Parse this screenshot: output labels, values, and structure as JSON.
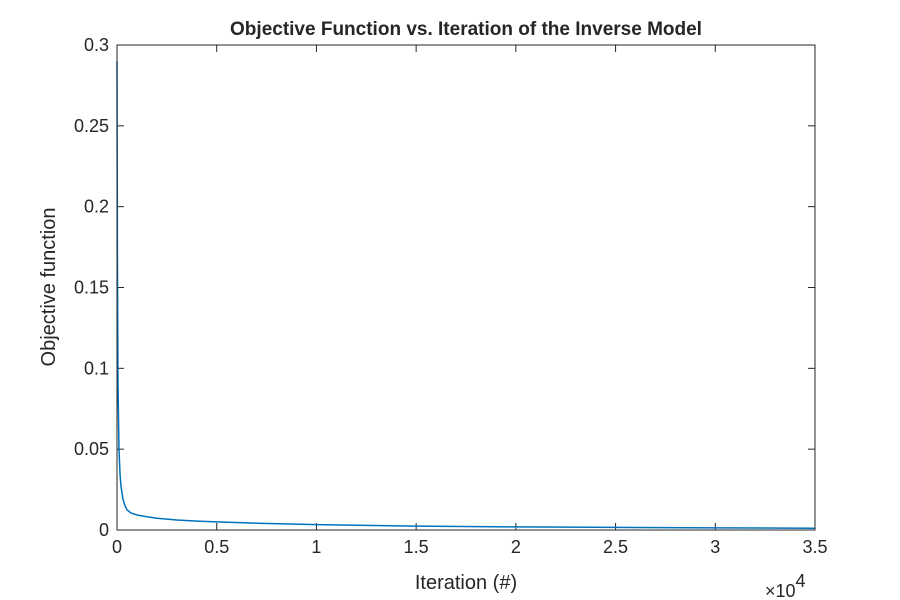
{
  "chart_data": {
    "type": "line",
    "title": "Objective Function vs. Iteration of the Inverse Model",
    "xlabel": "Iteration (#)",
    "ylabel": "Objective function",
    "xlim": [
      0,
      35000
    ],
    "ylim": [
      0,
      0.3
    ],
    "x_exponent_label": {
      "base": "×10",
      "power": "4"
    },
    "x_tick_values": [
      0,
      5000,
      10000,
      15000,
      20000,
      25000,
      30000,
      35000
    ],
    "x_tick_labels": [
      "0",
      "0.5",
      "1",
      "1.5",
      "2",
      "2.5",
      "3",
      "3.5"
    ],
    "y_tick_values": [
      0,
      0.05,
      0.1,
      0.15,
      0.2,
      0.25,
      0.3
    ],
    "y_tick_labels": [
      "0",
      "0.05",
      "0.1",
      "0.15",
      "0.2",
      "0.25",
      "0.3"
    ],
    "grid": false,
    "series": [
      {
        "color": "#0072BD",
        "x": [
          0,
          20,
          50,
          100,
          150,
          200,
          300,
          400,
          500,
          700,
          1000,
          1500,
          2000,
          3000,
          4000,
          5000,
          7000,
          10000,
          15000,
          20000,
          25000,
          30000,
          35000
        ],
        "y": [
          0.29,
          0.17,
          0.09,
          0.05,
          0.035,
          0.027,
          0.019,
          0.015,
          0.0125,
          0.0105,
          0.0093,
          0.0082,
          0.0073,
          0.0062,
          0.0055,
          0.005,
          0.0042,
          0.0033,
          0.0024,
          0.0019,
          0.0016,
          0.0013,
          0.0011
        ]
      }
    ]
  }
}
